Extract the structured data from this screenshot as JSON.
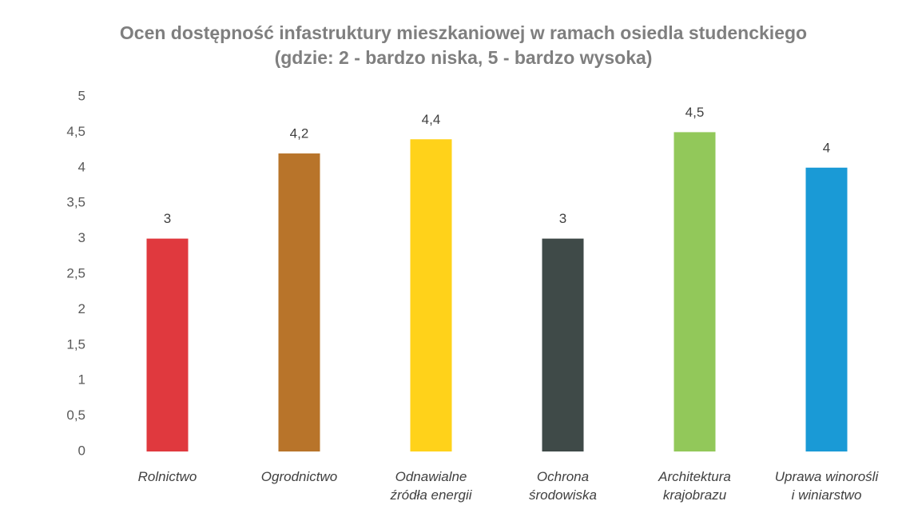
{
  "chart_data": {
    "type": "bar",
    "title": "Ocen dostępność infastruktury mieszkaniowej w ramach osiedla studenckiego (gdzie: 2 - bardzo niska, 5 - bardzo wysoka)",
    "categories": [
      "Rolnictwo",
      "Ogrodnictwo",
      "Odnawialne\nźródła energii",
      "Ochrona\nśrodowiska",
      "Architektura\nkrajobrazu",
      "Uprawa winorośli\ni winiarstwo"
    ],
    "values": [
      3,
      4.2,
      4.4,
      3,
      4.5,
      4
    ],
    "value_labels": [
      "3",
      "4,2",
      "4,4",
      "3",
      "4,5",
      "4"
    ],
    "colors": [
      "#e0393e",
      "#b8742a",
      "#ffd21a",
      "#3f4a48",
      "#92c85a",
      "#1a9ad6"
    ],
    "ylim": [
      0,
      5
    ],
    "yticks": [
      0,
      {
        "value": 0.5,
        "label": "0,5"
      },
      1,
      {
        "value": 1.5,
        "label": "1,5"
      },
      2,
      {
        "value": 2.5,
        "label": "2,5"
      },
      3,
      {
        "value": 3.5,
        "label": "3,5"
      },
      4,
      {
        "value": 4.5,
        "label": "4,5"
      },
      5
    ],
    "grid": false
  }
}
